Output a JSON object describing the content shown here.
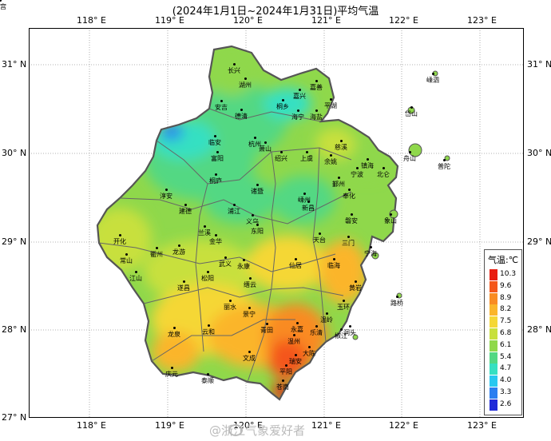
{
  "title": "(2024年1月1日~2024年1月31日)平均气温",
  "axes": {
    "lon_labels": [
      "118° E",
      "119° E",
      "120° E",
      "121° E",
      "122° E",
      "123° E"
    ],
    "lat_labels": [
      "31° N",
      "30° N",
      "29° N",
      "28° N",
      "27° N"
    ]
  },
  "legend": {
    "title": "气温:℃",
    "items": [
      {
        "label": "10.3",
        "color": "#e81d10"
      },
      {
        "label": "9.6",
        "color": "#f4561a"
      },
      {
        "label": "8.9",
        "color": "#f98b22"
      },
      {
        "label": "8.2",
        "color": "#fbb52a"
      },
      {
        "label": "7.5",
        "color": "#f5d735"
      },
      {
        "label": "6.8",
        "color": "#c8e03c"
      },
      {
        "label": "6.1",
        "color": "#8fd84b"
      },
      {
        "label": "5.4",
        "color": "#52d883"
      },
      {
        "label": "4.7",
        "color": "#36e0c2"
      },
      {
        "label": "4.0",
        "color": "#28c8f0"
      },
      {
        "label": "3.3",
        "color": "#2a7ef0"
      },
      {
        "label": "2.6",
        "color": "#1f2ad8"
      }
    ]
  },
  "cities": [
    {
      "name": "长兴"
    },
    {
      "name": "湖州"
    },
    {
      "name": "安吉"
    },
    {
      "name": "德清"
    },
    {
      "name": "嘉善"
    },
    {
      "name": "嘉兴"
    },
    {
      "name": "平湖"
    },
    {
      "name": "桐乡"
    },
    {
      "name": "海宁"
    },
    {
      "name": "海盐"
    },
    {
      "name": "临安"
    },
    {
      "name": "杭州"
    },
    {
      "name": "萧山"
    },
    {
      "name": "富阳"
    },
    {
      "name": "绍兴"
    },
    {
      "name": "上虞"
    },
    {
      "name": "余姚"
    },
    {
      "name": "慈溪"
    },
    {
      "name": "镇海"
    },
    {
      "name": "宁波"
    },
    {
      "name": "北仑"
    },
    {
      "name": "鄞州"
    },
    {
      "name": "奉化"
    },
    {
      "name": "舟山"
    },
    {
      "name": "岱山"
    },
    {
      "name": "嵊泗"
    },
    {
      "name": "普陀"
    },
    {
      "name": "桐庐"
    },
    {
      "name": "淳安"
    },
    {
      "name": "建德"
    },
    {
      "name": "诸暨"
    },
    {
      "name": "嵊州"
    },
    {
      "name": "新昌"
    },
    {
      "name": "浦江"
    },
    {
      "name": "义乌"
    },
    {
      "name": "东阳"
    },
    {
      "name": "兰溪"
    },
    {
      "name": "金华"
    },
    {
      "name": "宁海"
    },
    {
      "name": "象山"
    },
    {
      "name": "三门"
    },
    {
      "name": "天台"
    },
    {
      "name": "开化"
    },
    {
      "name": "常山"
    },
    {
      "name": "衢州"
    },
    {
      "name": "龙游"
    },
    {
      "name": "江山"
    },
    {
      "name": "武义"
    },
    {
      "name": "永康"
    },
    {
      "name": "磐安"
    },
    {
      "name": "仙居"
    },
    {
      "name": "临海"
    },
    {
      "name": "缙云"
    },
    {
      "name": "遂昌"
    },
    {
      "name": "松阳"
    },
    {
      "name": "丽水"
    },
    {
      "name": "龙泉"
    },
    {
      "name": "云和"
    },
    {
      "name": "景宁"
    },
    {
      "name": "庆元"
    },
    {
      "name": "青田"
    },
    {
      "name": "永嘉"
    },
    {
      "name": "温州"
    },
    {
      "name": "瑞安"
    },
    {
      "name": "平阳"
    },
    {
      "name": "苍南"
    },
    {
      "name": "泰顺"
    },
    {
      "name": "文成"
    },
    {
      "name": "乐清"
    },
    {
      "name": "洞头"
    },
    {
      "name": "玉环"
    },
    {
      "name": "温岭"
    },
    {
      "name": "黄岩"
    },
    {
      "name": "椒江"
    },
    {
      "name": "路桥"
    },
    {
      "name": "大陈"
    },
    {
      "name": "洞宫"
    }
  ],
  "watermark": "@浙江气象爱好者"
}
